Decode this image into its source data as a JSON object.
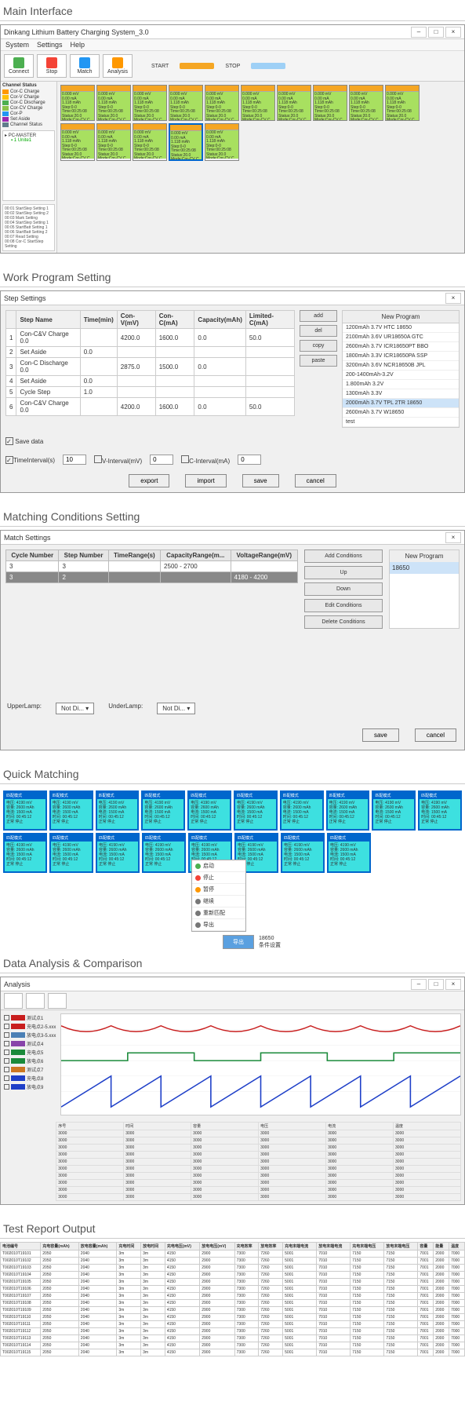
{
  "sections": {
    "main": "Main Interface",
    "work": "Work Program Setting",
    "match": "Matching Conditions Setting",
    "quick": "Quick Matching",
    "analysis": "Data Analysis & Comparison",
    "report": "Test Report Output"
  },
  "colors": {
    "orange": "#f5a623",
    "green": "#a8e060",
    "cyan": "#3de0e0",
    "blue": "#0066cc",
    "red_line": "#c81e1e",
    "green_line": "#1a8a3a",
    "blue_line": "#1e3fc8"
  },
  "mainWindow": {
    "title": "Dinkang Lithium Battery Charging System_3.0",
    "menu": [
      "System",
      "Settings",
      "Help"
    ],
    "tools": [
      {
        "label": "Connect",
        "color": "#4caf50"
      },
      {
        "label": "Stop",
        "color": "#f44336"
      },
      {
        "label": "Match",
        "color": "#2196f3"
      },
      {
        "label": "Analysis",
        "color": "#ff9800"
      }
    ],
    "legend": [
      {
        "label": "START",
        "color": "#f5a623"
      },
      {
        "label": "STOP",
        "color": "#9ed0f6"
      }
    ],
    "statuses": [
      {
        "label": "Cor-C Charge",
        "color": "#ff9800"
      },
      {
        "label": "Cor-V Charge",
        "color": "#ffc107"
      },
      {
        "label": "Cor-C Discharge",
        "color": "#4caf50"
      },
      {
        "label": "Cor-CV Charge",
        "color": "#8bc34a"
      },
      {
        "label": "Cor-P",
        "color": "#2196f3"
      },
      {
        "label": "Set Aside",
        "color": "#9c27b0"
      },
      {
        "label": "Channel Status",
        "color": "#607d8b"
      }
    ],
    "tree": {
      "root": "PC-MASTER",
      "child": "1 Unite1"
    },
    "cells_row1": [
      1,
      2,
      3,
      4,
      5,
      6,
      7,
      8,
      9,
      10
    ],
    "cells_row2": [
      1,
      2,
      3,
      4,
      5
    ],
    "cellText": "0.000 mV\n0.00 mA\n1.118 mAh\nStep:0-0\nTime:00:25:08\nStatus:20.0\nMode:Cor-CV C.",
    "log_lines": [
      "00:01 StartStep Setting 1",
      "00:02 StartStep Setting 2",
      "00:03 Mark Setting",
      "00:04 StartStep Setting 1",
      "00:05 StartBatt Setting 1",
      "00:06 StartBatt Setting 2",
      "00:07 Read Setting",
      "00:08 Cor-C StartStep Setting"
    ]
  },
  "stepWindow": {
    "title": "Step Settings",
    "headers": [
      "",
      "Step Name",
      "Time(min)",
      "Con-V(mV)",
      "Con-C(mA)",
      "Capacity(mAh)",
      "Limited-C(mA)"
    ],
    "rows": [
      [
        "1",
        "Con-C&V Charge 0.0",
        "",
        "4200.0",
        "1600.0",
        "0.0",
        "50.0"
      ],
      [
        "2",
        "Set Aside",
        "0.0",
        "",
        "",
        "",
        ""
      ],
      [
        "3",
        "Con-C Discharge 0.0",
        "",
        "2875.0",
        "1500.0",
        "0.0",
        ""
      ],
      [
        "4",
        "Set Aside",
        "0.0",
        "",
        "",
        "",
        ""
      ],
      [
        "5",
        "Cycle Step",
        "1.0",
        "",
        "",
        "",
        ""
      ],
      [
        "6",
        "Con-C&V Charge 0.0",
        "",
        "4200.0",
        "1600.0",
        "0.0",
        "50.0"
      ]
    ],
    "sideBtns": [
      "add",
      "del",
      "copy",
      "paste"
    ],
    "programs": {
      "header": "New Program",
      "items": [
        "1200mAh 3.7V HTC 18650",
        "2100mAh 3.6V UR18650A GTC",
        "2600mAh 3.7V ICR18650PT BBO",
        "1800mAh 3.3V ICR18650PA SSP",
        "3200mAh 3.6V NCR18650B JPL",
        "200-1400mAh-3.2V",
        "1.800mAh 3.2V",
        "1300mAh 3.3V",
        "2000mAh 3.7V TPL 2TR 18650",
        "2600mAh 3.7V W18650",
        "test"
      ],
      "selected": 8
    },
    "footer": {
      "save_data": "Save data",
      "time_interval": "TimeInterval(s)",
      "time_val": "10",
      "v_interval": "V-Interval(mV)",
      "v_val": "0",
      "c_interval": "C-Interval(mA)",
      "c_val": "0",
      "btns": [
        "export",
        "import",
        "save",
        "cancel"
      ]
    }
  },
  "matchWindow": {
    "title": "Match Settings",
    "headers": [
      "Cycle Number",
      "Step Number",
      "TimeRange(s)",
      "CapacityRange(m...",
      "VoltageRange(mV)"
    ],
    "rows": [
      [
        "3",
        "3",
        "",
        "2500 - 2700",
        ""
      ],
      [
        "3",
        "2",
        "",
        "",
        "4180 - 4200"
      ]
    ],
    "btns": [
      "Add Conditions",
      "Up",
      "Down",
      "Edit Conditions",
      "Delete Conditions"
    ],
    "program_header": "New Program",
    "program_item": "18650",
    "upper": "UpperLamp:",
    "under": "UnderLamp:",
    "not_di": "Not Di...",
    "save": "save",
    "cancel": "cancel"
  },
  "quickMatch": {
    "hdr": "匹配模式",
    "body": "电压: 4190 mV\n容量: 2600 mAh\n电流: 1500 mA\n时间: 00:45:12\n正常 停止",
    "row1": 10,
    "row2": 8,
    "menu": [
      {
        "label": "启动",
        "color": "#4caf50"
      },
      {
        "label": "停止",
        "color": "#f44336"
      },
      {
        "label": "暂停",
        "color": "#ff9800"
      },
      {
        "label": "继续",
        "color": "#777"
      },
      {
        "label": "重新匹配",
        "color": "#777"
      },
      {
        "label": "导出",
        "color": "#777"
      }
    ],
    "bottom_btn": "导出",
    "bottom_txt": "18650\n条件设置"
  },
  "analysis": {
    "title": "Analysis",
    "series": [
      {
        "label": "测试点1",
        "color": "#c81e1e"
      },
      {
        "label": "充电点2-5.xxx",
        "color": "#c81e1e"
      },
      {
        "label": "放电点3-5.xxx",
        "color": "#4a7fb5"
      },
      {
        "label": "测试点4",
        "color": "#8844aa"
      },
      {
        "label": "充电点5",
        "color": "#1a8a3a"
      },
      {
        "label": "放电点6",
        "color": "#1a8a3a"
      },
      {
        "label": "测试点7",
        "color": "#cc7722"
      },
      {
        "label": "充电点8",
        "color": "#1e3fc8"
      },
      {
        "label": "放电点9",
        "color": "#1e3fc8"
      }
    ],
    "data_headers": [
      "序号",
      "时间",
      "容量",
      "电压",
      "电流",
      "温度"
    ],
    "data_rows": 10
  },
  "report": {
    "headers": [
      "电池编号",
      "充电容量(mAh)",
      "放电容量(mAh)",
      "充电时间",
      "放电时间",
      "充电电压(mV)",
      "放电电压(mV)",
      "充电效率",
      "放电效率",
      "充电末端电流",
      "放电末端电流",
      "充电末端电压",
      "放电末端电压",
      "容量",
      "能量",
      "温度"
    ],
    "rows": [
      [
        "T002010T19101",
        "2050",
        "2040",
        "3m",
        "3m",
        "4150",
        "2900",
        "7300",
        "7260",
        "5001",
        "7010",
        "7150",
        "7150",
        "7001",
        "2000",
        "7000"
      ],
      [
        "T002010T19102",
        "2050",
        "2040",
        "3m",
        "3m",
        "4150",
        "2900",
        "7300",
        "7260",
        "5001",
        "7010",
        "7150",
        "7150",
        "7001",
        "2000",
        "7000"
      ],
      [
        "T002010T19103",
        "2050",
        "2040",
        "3m",
        "3m",
        "4150",
        "2900",
        "7300",
        "7260",
        "5001",
        "7010",
        "7150",
        "7150",
        "7001",
        "2000",
        "7000"
      ],
      [
        "T002010T19104",
        "2050",
        "2040",
        "3m",
        "3m",
        "4150",
        "2900",
        "7300",
        "7260",
        "5001",
        "7010",
        "7150",
        "7150",
        "7001",
        "2000",
        "7000"
      ],
      [
        "T002010T19105",
        "2050",
        "2040",
        "3m",
        "3m",
        "4150",
        "2900",
        "7300",
        "7260",
        "5001",
        "7010",
        "7150",
        "7150",
        "7001",
        "2000",
        "7000"
      ],
      [
        "T002010T19106",
        "2050",
        "2040",
        "3m",
        "3m",
        "4150",
        "2900",
        "7300",
        "7260",
        "5001",
        "7010",
        "7150",
        "7150",
        "7001",
        "2000",
        "7000"
      ],
      [
        "T002010T19107",
        "2050",
        "2040",
        "3m",
        "3m",
        "4150",
        "2900",
        "7300",
        "7260",
        "5001",
        "7010",
        "7150",
        "7150",
        "7001",
        "2000",
        "7000"
      ],
      [
        "T002010T19108",
        "2050",
        "2040",
        "3m",
        "3m",
        "4150",
        "2900",
        "7300",
        "7260",
        "5001",
        "7010",
        "7150",
        "7150",
        "7001",
        "2000",
        "7000"
      ],
      [
        "T002010T19109",
        "2050",
        "2040",
        "3m",
        "3m",
        "4150",
        "2900",
        "7300",
        "7260",
        "5001",
        "7010",
        "7150",
        "7150",
        "7001",
        "2000",
        "7000"
      ],
      [
        "T002010T19110",
        "2050",
        "2040",
        "3m",
        "3m",
        "4150",
        "2900",
        "7300",
        "7260",
        "5001",
        "7010",
        "7150",
        "7150",
        "7001",
        "2000",
        "7000"
      ],
      [
        "T002010T19111",
        "2050",
        "2040",
        "3m",
        "3m",
        "4150",
        "2900",
        "7300",
        "7260",
        "5001",
        "7010",
        "7150",
        "7150",
        "7001",
        "2000",
        "7000"
      ],
      [
        "T002010T19112",
        "2050",
        "2040",
        "3m",
        "3m",
        "4150",
        "2900",
        "7300",
        "7260",
        "5001",
        "7010",
        "7150",
        "7150",
        "7001",
        "2000",
        "7000"
      ],
      [
        "T002010T19113",
        "2050",
        "2040",
        "3m",
        "3m",
        "4150",
        "2900",
        "7300",
        "7260",
        "5001",
        "7010",
        "7150",
        "7150",
        "7001",
        "2000",
        "7000"
      ],
      [
        "T002010T19114",
        "2050",
        "2040",
        "3m",
        "3m",
        "4150",
        "2900",
        "7300",
        "7260",
        "5001",
        "7010",
        "7150",
        "7150",
        "7001",
        "2000",
        "7000"
      ],
      [
        "T002010T19115",
        "2050",
        "2040",
        "3m",
        "3m",
        "4150",
        "2900",
        "7300",
        "7260",
        "5001",
        "7010",
        "7150",
        "7150",
        "7001",
        "2000",
        "7000"
      ]
    ]
  }
}
